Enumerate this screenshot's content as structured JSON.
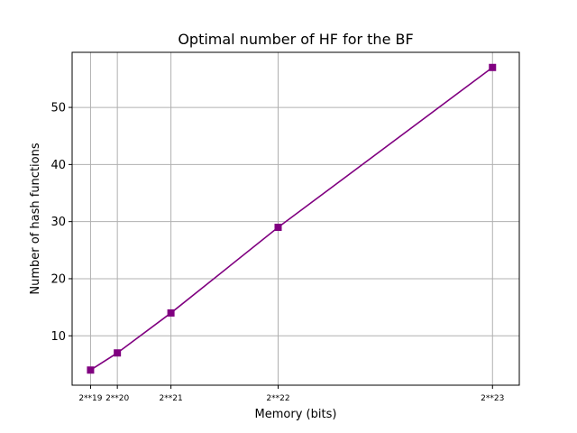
{
  "chart_data": {
    "type": "line",
    "title": "Optimal number of HF for the BF",
    "xlabel": "Memory (bits)",
    "ylabel": "Number of hash functions",
    "x": [
      524288,
      1048576,
      2097152,
      4194304,
      8388608
    ],
    "x_tick_labels": [
      "2**19",
      "2**20",
      "2**21",
      "2**22",
      "2**23"
    ],
    "y_ticks": [
      10,
      20,
      30,
      40,
      50
    ],
    "xlim": [
      163840,
      8912896
    ],
    "ylim": [
      1.35,
      59.65
    ],
    "grid": true,
    "series": [
      {
        "values": [
          4,
          7,
          14,
          29,
          57
        ],
        "color": "#800080",
        "marker": "square"
      }
    ]
  }
}
